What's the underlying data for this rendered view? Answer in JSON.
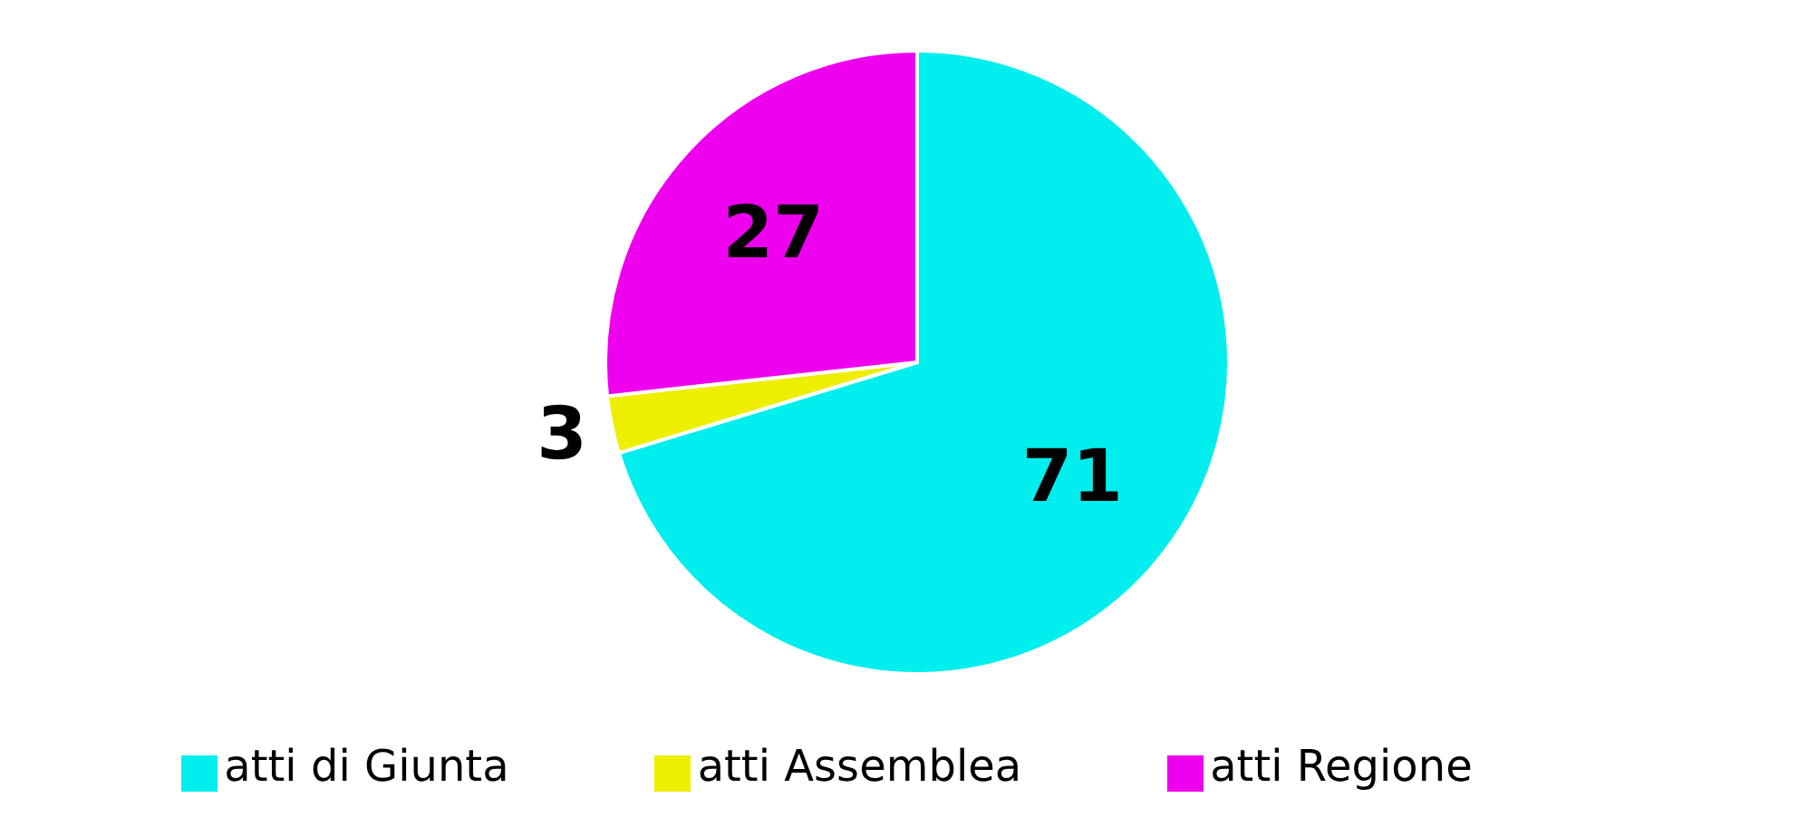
{
  "chart_data": {
    "type": "pie",
    "categories": [
      "atti di Giunta",
      "atti Assemblea",
      "atti Regione"
    ],
    "values": [
      71,
      3,
      27
    ],
    "colors": [
      "#00eeee",
      "#eeee00",
      "#ee00ee"
    ],
    "data_labels": true,
    "legend": "bottom"
  }
}
